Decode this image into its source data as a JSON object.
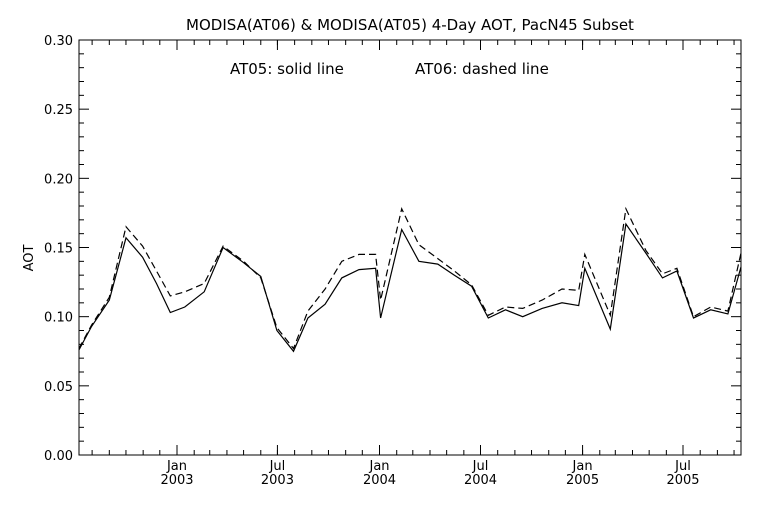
{
  "chart_data": {
    "type": "line",
    "title": "MODISA(AT06) & MODISA(AT05) 4-Day AOT, PacN45 Subset",
    "annotation": {
      "solid": "AT05: solid line",
      "dashed": "AT06: dashed line"
    },
    "xlabel": "",
    "ylabel": "AOT",
    "ylim": [
      0.0,
      0.3
    ],
    "xlim": [
      "2002-07-01",
      "2005-10-01"
    ],
    "grid": false,
    "yticks": [
      "0.00",
      "0.05",
      "0.10",
      "0.15",
      "0.20",
      "0.25",
      "0.30"
    ],
    "xticks": [
      {
        "date": "2003-01-01",
        "month": "Jan",
        "year": "2003"
      },
      {
        "date": "2003-07-01",
        "month": "Jul",
        "year": "2003"
      },
      {
        "date": "2004-01-01",
        "month": "Jan",
        "year": "2004"
      },
      {
        "date": "2004-07-01",
        "month": "Jul",
        "year": "2004"
      },
      {
        "date": "2005-01-01",
        "month": "Jan",
        "year": "2005"
      },
      {
        "date": "2005-07-01",
        "month": "Jul",
        "year": "2005"
      }
    ],
    "series": [
      {
        "name": "AT05",
        "style": "solid",
        "color": "#000000",
        "points": [
          [
            "2002-07-01",
            0.076
          ],
          [
            "2002-07-31",
            0.093
          ],
          [
            "2002-09-01",
            0.112
          ],
          [
            "2002-10-01",
            0.157
          ],
          [
            "2002-10-31",
            0.143
          ],
          [
            "2002-11-25",
            0.124
          ],
          [
            "2002-12-20",
            0.103
          ],
          [
            "2003-01-15",
            0.107
          ],
          [
            "2003-02-19",
            0.118
          ],
          [
            "2003-03-25",
            0.15
          ],
          [
            "2003-05-01",
            0.139
          ],
          [
            "2003-06-01",
            0.129
          ],
          [
            "2003-06-30",
            0.09
          ],
          [
            "2003-07-30",
            0.075
          ],
          [
            "2003-08-25",
            0.099
          ],
          [
            "2003-09-25",
            0.109
          ],
          [
            "2003-10-25",
            0.128
          ],
          [
            "2003-11-25",
            0.134
          ],
          [
            "2003-12-25",
            0.135
          ],
          [
            "2004-01-03",
            0.099
          ],
          [
            "2004-02-10",
            0.163
          ],
          [
            "2004-03-12",
            0.14
          ],
          [
            "2004-04-15",
            0.138
          ],
          [
            "2004-05-15",
            0.13
          ],
          [
            "2004-06-15",
            0.122
          ],
          [
            "2004-07-15",
            0.099
          ],
          [
            "2004-08-15",
            0.105
          ],
          [
            "2004-09-15",
            0.1
          ],
          [
            "2004-10-20",
            0.106
          ],
          [
            "2004-11-25",
            0.11
          ],
          [
            "2004-12-25",
            0.108
          ],
          [
            "2005-01-05",
            0.135
          ],
          [
            "2005-02-20",
            0.091
          ],
          [
            "2005-03-20",
            0.167
          ],
          [
            "2005-04-25",
            0.146
          ],
          [
            "2005-05-25",
            0.128
          ],
          [
            "2005-06-20",
            0.133
          ],
          [
            "2005-07-20",
            0.099
          ],
          [
            "2005-08-20",
            0.105
          ],
          [
            "2005-09-20",
            0.102
          ],
          [
            "2005-10-20",
            0.136
          ]
        ]
      },
      {
        "name": "AT06",
        "style": "dashed",
        "color": "#000000",
        "points": [
          [
            "2002-07-01",
            0.077
          ],
          [
            "2002-07-31",
            0.094
          ],
          [
            "2002-09-01",
            0.114
          ],
          [
            "2002-10-01",
            0.165
          ],
          [
            "2002-10-31",
            0.151
          ],
          [
            "2002-11-25",
            0.133
          ],
          [
            "2002-12-20",
            0.115
          ],
          [
            "2003-01-15",
            0.118
          ],
          [
            "2003-02-19",
            0.124
          ],
          [
            "2003-03-25",
            0.151
          ],
          [
            "2003-05-01",
            0.14
          ],
          [
            "2003-06-01",
            0.128
          ],
          [
            "2003-06-30",
            0.092
          ],
          [
            "2003-07-30",
            0.077
          ],
          [
            "2003-08-25",
            0.104
          ],
          [
            "2003-09-25",
            0.12
          ],
          [
            "2003-10-25",
            0.14
          ],
          [
            "2003-11-25",
            0.145
          ],
          [
            "2003-12-25",
            0.145
          ],
          [
            "2004-01-03",
            0.112
          ],
          [
            "2004-02-10",
            0.178
          ],
          [
            "2004-03-12",
            0.152
          ],
          [
            "2004-04-15",
            0.142
          ],
          [
            "2004-05-15",
            0.133
          ],
          [
            "2004-06-15",
            0.123
          ],
          [
            "2004-07-15",
            0.101
          ],
          [
            "2004-08-15",
            0.107
          ],
          [
            "2004-09-15",
            0.106
          ],
          [
            "2004-10-20",
            0.112
          ],
          [
            "2004-11-25",
            0.12
          ],
          [
            "2004-12-25",
            0.119
          ],
          [
            "2005-01-05",
            0.145
          ],
          [
            "2005-02-20",
            0.101
          ],
          [
            "2005-03-20",
            0.178
          ],
          [
            "2005-04-25",
            0.148
          ],
          [
            "2005-05-25",
            0.131
          ],
          [
            "2005-06-20",
            0.135
          ],
          [
            "2005-07-20",
            0.1
          ],
          [
            "2005-08-20",
            0.107
          ],
          [
            "2005-09-20",
            0.104
          ],
          [
            "2005-10-20",
            0.146
          ]
        ]
      }
    ]
  }
}
